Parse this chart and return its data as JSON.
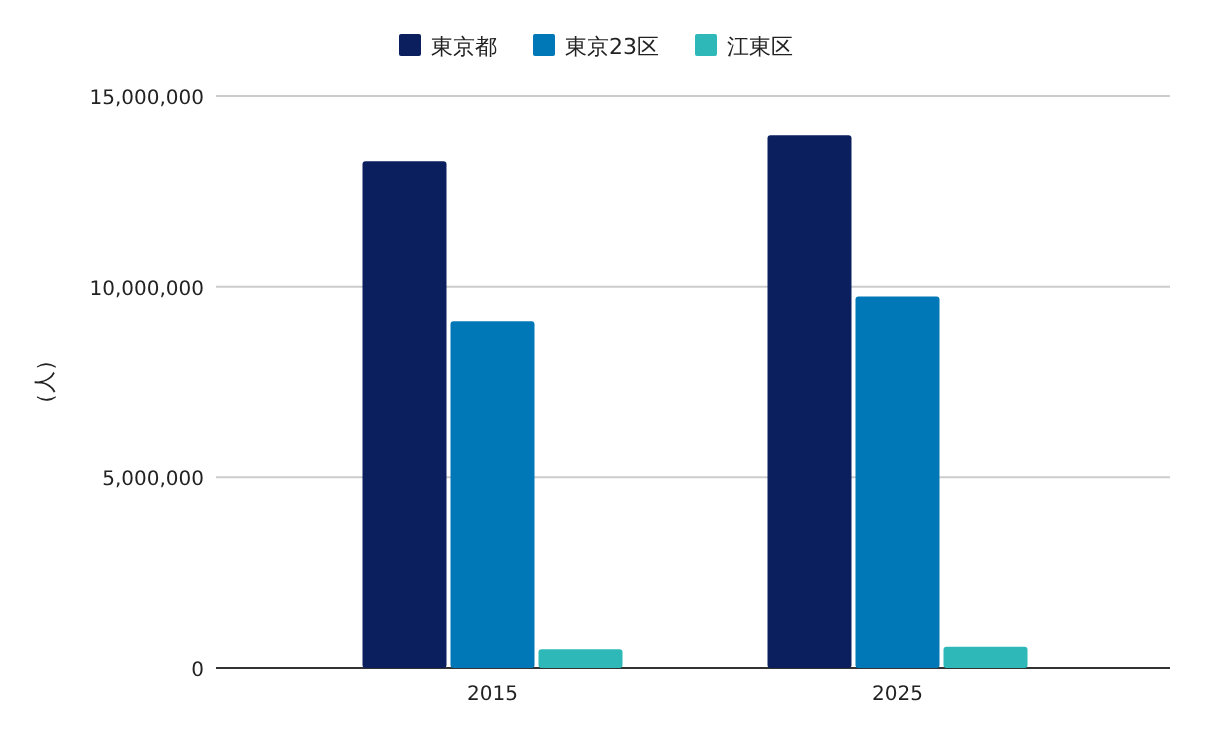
{
  "chart_data": {
    "type": "bar",
    "ylabel": "（人）",
    "categories": [
      "2015",
      "2025"
    ],
    "series": [
      {
        "name": "東京都",
        "color": "#0b1f5f",
        "values": [
          13290000,
          13970000
        ]
      },
      {
        "name": "東京23区",
        "color": "#0077b6",
        "values": [
          9090000,
          9740000
        ]
      },
      {
        "name": "江東区",
        "color": "#2eb8b8",
        "values": [
          490000,
          560000
        ]
      }
    ],
    "ylim": [
      0,
      15000000
    ],
    "yticks": [
      0,
      {
        "value": 5000000,
        "label": "5,000,000"
      },
      {
        "value": 10000000,
        "label": "10,000,000"
      },
      {
        "value": 15000000,
        "label": "15,000,000"
      }
    ],
    "grid": "y",
    "legend": "top"
  }
}
